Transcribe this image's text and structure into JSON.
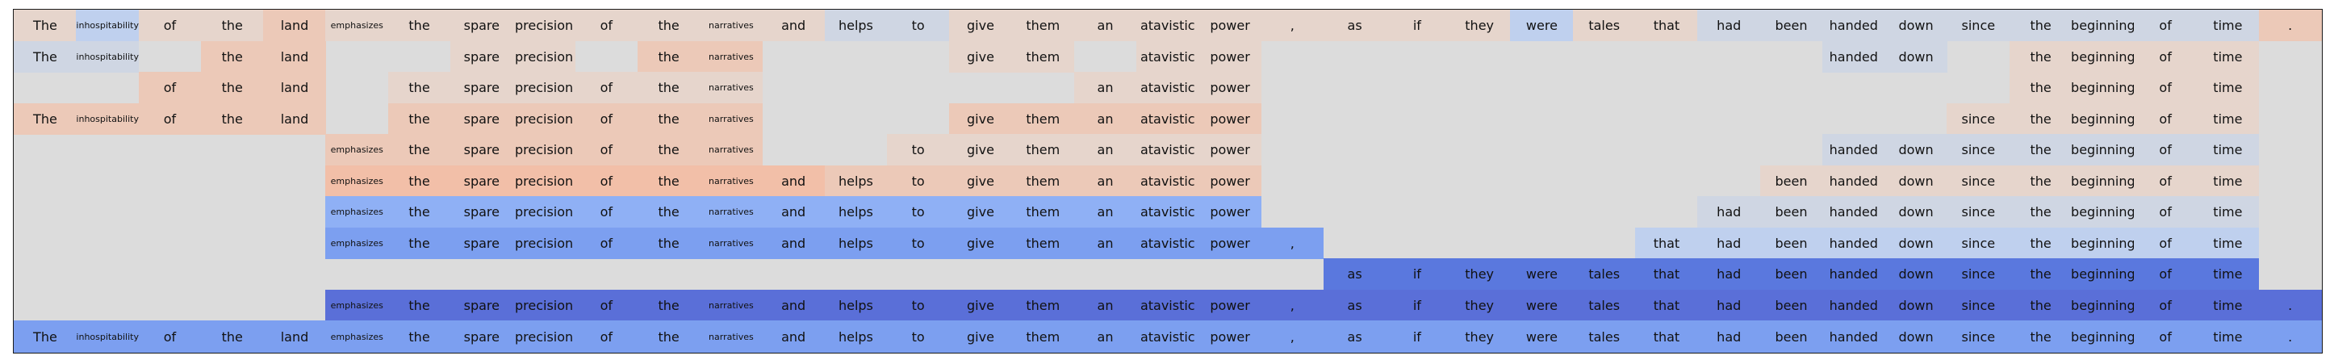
{
  "tokens": [
    "The",
    "inhospitability",
    "of",
    "the",
    "land",
    "emphasizes",
    "the",
    "spare",
    "precision",
    "of",
    "the",
    "narratives",
    "and",
    "helps",
    "to",
    "give",
    "them",
    "an",
    "atavistic",
    "power",
    ",",
    "as",
    "if",
    "they",
    "were",
    "tales",
    "that",
    "had",
    "been",
    "handed",
    "down",
    "since",
    "the",
    "beginning",
    "of",
    "time",
    "."
  ],
  "small_tokens": [
    "inhospitability",
    "emphasizes",
    "narratives"
  ],
  "palette": {
    "background": "#dcdcdc",
    "o1": "#e6d5cc",
    "o2": "#ecc9b8",
    "o3": "#f2bfa8",
    "b0": "#cfd6e3",
    "b1": "#bfd0ee",
    "b2": "#8fb0f5",
    "b3": "#7c9ff0",
    "b4": "#6a8ceb",
    "b5": "#5a78de",
    "b6": "#5a6fd8"
  },
  "rows": [
    {
      "cells": [
        "o1",
        "b1",
        "o1",
        "o1",
        "o2",
        "o1",
        "o1",
        "o1",
        "o1",
        "o1",
        "o1",
        "o1",
        "o1",
        "b0",
        "b0",
        "o1",
        "o1",
        "o1",
        "o1",
        "o1",
        "o1",
        "o1",
        "o1",
        "o1",
        "b1",
        "o1",
        "o1",
        "b0",
        "b0",
        "b0",
        "b0",
        "b0",
        "b0",
        "b0",
        "b0",
        "b0",
        "o2"
      ],
      "show": [
        1,
        1,
        1,
        1,
        1,
        1,
        1,
        1,
        1,
        1,
        1,
        1,
        1,
        1,
        1,
        1,
        1,
        1,
        1,
        1,
        1,
        1,
        1,
        1,
        1,
        1,
        1,
        1,
        1,
        1,
        1,
        1,
        1,
        1,
        1,
        1,
        1
      ]
    },
    {
      "cells": [
        "b0",
        "b0",
        null,
        "o2",
        "o2",
        null,
        null,
        "o1",
        "o1",
        null,
        "o2",
        "o2",
        null,
        null,
        null,
        "o1",
        "o1",
        null,
        "o1",
        "o1",
        null,
        null,
        null,
        null,
        null,
        null,
        null,
        null,
        null,
        "b0",
        "b0",
        null,
        "o1",
        "o1",
        "o1",
        "o1",
        null
      ],
      "show": [
        1,
        1,
        0,
        1,
        1,
        0,
        0,
        1,
        1,
        0,
        1,
        1,
        0,
        0,
        0,
        1,
        1,
        0,
        1,
        1,
        0,
        0,
        0,
        0,
        0,
        0,
        0,
        0,
        0,
        1,
        1,
        0,
        1,
        1,
        1,
        1,
        0
      ]
    },
    {
      "cells": [
        null,
        null,
        "o2",
        "o2",
        "o2",
        null,
        "o1",
        "o1",
        "o1",
        "o1",
        "o1",
        "o1",
        null,
        null,
        null,
        null,
        null,
        "o1",
        "o1",
        "o1",
        null,
        null,
        null,
        null,
        null,
        null,
        null,
        null,
        null,
        null,
        null,
        null,
        "o1",
        "o1",
        "o1",
        "o1",
        null
      ],
      "show": [
        0,
        0,
        1,
        1,
        1,
        0,
        1,
        1,
        1,
        1,
        1,
        1,
        0,
        0,
        0,
        0,
        0,
        1,
        1,
        1,
        0,
        0,
        0,
        0,
        0,
        0,
        0,
        0,
        0,
        0,
        0,
        0,
        1,
        1,
        1,
        1,
        0
      ]
    },
    {
      "cells": [
        "o2",
        "o2",
        "o2",
        "o2",
        "o2",
        null,
        "o2",
        "o2",
        "o2",
        "o2",
        "o2",
        "o2",
        null,
        null,
        null,
        "o2",
        "o2",
        "o2",
        "o2",
        "o2",
        null,
        null,
        null,
        null,
        null,
        null,
        null,
        null,
        null,
        null,
        null,
        "o1",
        "o1",
        "o1",
        "o1",
        "o1",
        null
      ],
      "show": [
        1,
        1,
        1,
        1,
        1,
        0,
        1,
        1,
        1,
        1,
        1,
        1,
        0,
        0,
        0,
        1,
        1,
        1,
        1,
        1,
        0,
        0,
        0,
        0,
        0,
        0,
        0,
        0,
        0,
        0,
        0,
        1,
        1,
        1,
        1,
        1,
        0
      ]
    },
    {
      "cells": [
        null,
        null,
        null,
        null,
        null,
        "o2",
        "o2",
        "o2",
        "o2",
        "o2",
        "o2",
        "o2",
        null,
        null,
        "o1",
        "o1",
        "o1",
        "o1",
        "o1",
        "o1",
        null,
        null,
        null,
        null,
        null,
        null,
        null,
        null,
        null,
        "b0",
        "b0",
        "b0",
        "b0",
        "b0",
        "b0",
        "b0",
        null
      ],
      "show": [
        0,
        0,
        0,
        0,
        0,
        1,
        1,
        1,
        1,
        1,
        1,
        1,
        0,
        0,
        1,
        1,
        1,
        1,
        1,
        1,
        0,
        0,
        0,
        0,
        0,
        0,
        0,
        0,
        0,
        1,
        1,
        1,
        1,
        1,
        1,
        1,
        0
      ]
    },
    {
      "cells": [
        null,
        null,
        null,
        null,
        null,
        "o3",
        "o3",
        "o3",
        "o3",
        "o3",
        "o3",
        "o3",
        "o3",
        "o2",
        "o2",
        "o2",
        "o2",
        "o2",
        "o2",
        "o2",
        null,
        null,
        null,
        null,
        null,
        null,
        null,
        null,
        "o1",
        "o1",
        "o1",
        "o1",
        "o1",
        "o1",
        "o1",
        "o1",
        null
      ],
      "show": [
        0,
        0,
        0,
        0,
        0,
        1,
        1,
        1,
        1,
        1,
        1,
        1,
        1,
        1,
        1,
        1,
        1,
        1,
        1,
        1,
        0,
        0,
        0,
        0,
        0,
        0,
        0,
        0,
        1,
        1,
        1,
        1,
        1,
        1,
        1,
        1,
        0
      ]
    },
    {
      "cells": [
        null,
        null,
        null,
        null,
        null,
        "b2",
        "b2",
        "b2",
        "b2",
        "b2",
        "b2",
        "b2",
        "b2",
        "b2",
        "b2",
        "b2",
        "b2",
        "b2",
        "b2",
        "b2",
        null,
        null,
        null,
        null,
        null,
        null,
        null,
        "b0",
        "b0",
        "b0",
        "b0",
        "b0",
        "b0",
        "b0",
        "b0",
        "b0",
        null
      ],
      "show": [
        0,
        0,
        0,
        0,
        0,
        1,
        1,
        1,
        1,
        1,
        1,
        1,
        1,
        1,
        1,
        1,
        1,
        1,
        1,
        1,
        0,
        0,
        0,
        0,
        0,
        0,
        0,
        1,
        1,
        1,
        1,
        1,
        1,
        1,
        1,
        1,
        0
      ]
    },
    {
      "cells": [
        null,
        null,
        null,
        null,
        null,
        "b3",
        "b3",
        "b3",
        "b3",
        "b3",
        "b3",
        "b3",
        "b3",
        "b3",
        "b3",
        "b3",
        "b3",
        "b3",
        "b3",
        "b3",
        "b3",
        null,
        null,
        null,
        null,
        null,
        "b1",
        "b1",
        "b1",
        "b1",
        "b1",
        "b1",
        "b1",
        "b1",
        "b1",
        "b1",
        null
      ],
      "show": [
        0,
        0,
        0,
        0,
        0,
        1,
        1,
        1,
        1,
        1,
        1,
        1,
        1,
        1,
        1,
        1,
        1,
        1,
        1,
        1,
        1,
        0,
        0,
        0,
        0,
        0,
        1,
        1,
        1,
        1,
        1,
        1,
        1,
        1,
        1,
        1,
        0
      ]
    },
    {
      "cells": [
        null,
        null,
        null,
        null,
        null,
        null,
        null,
        null,
        null,
        null,
        null,
        null,
        null,
        null,
        null,
        null,
        null,
        null,
        null,
        null,
        null,
        "b5",
        "b5",
        "b5",
        "b5",
        "b5",
        "b5",
        "b5",
        "b5",
        "b5",
        "b5",
        "b5",
        "b5",
        "b5",
        "b5",
        "b5",
        null
      ],
      "show": [
        0,
        0,
        0,
        0,
        0,
        0,
        0,
        0,
        0,
        0,
        0,
        0,
        0,
        0,
        0,
        0,
        0,
        0,
        0,
        0,
        0,
        1,
        1,
        1,
        1,
        1,
        1,
        1,
        1,
        1,
        1,
        1,
        1,
        1,
        1,
        1,
        0
      ]
    },
    {
      "cells": [
        null,
        null,
        null,
        null,
        null,
        "b6",
        "b6",
        "b6",
        "b6",
        "b6",
        "b6",
        "b6",
        "b6",
        "b6",
        "b6",
        "b6",
        "b6",
        "b6",
        "b6",
        "b6",
        "b6",
        "b6",
        "b6",
        "b6",
        "b6",
        "b6",
        "b6",
        "b6",
        "b6",
        "b6",
        "b6",
        "b6",
        "b6",
        "b6",
        "b6",
        "b6",
        "b6"
      ],
      "show": [
        0,
        0,
        0,
        0,
        0,
        1,
        1,
        1,
        1,
        1,
        1,
        1,
        1,
        1,
        1,
        1,
        1,
        1,
        1,
        1,
        1,
        1,
        1,
        1,
        1,
        1,
        1,
        1,
        1,
        1,
        1,
        1,
        1,
        1,
        1,
        1,
        1
      ]
    },
    {
      "cells": [
        "b3",
        "b3",
        "b3",
        "b3",
        "b3",
        "b3",
        "b3",
        "b3",
        "b3",
        "b3",
        "b3",
        "b3",
        "b3",
        "b3",
        "b3",
        "b3",
        "b3",
        "b3",
        "b3",
        "b3",
        "b3",
        "b3",
        "b3",
        "b3",
        "b3",
        "b3",
        "b3",
        "b3",
        "b3",
        "b3",
        "b3",
        "b3",
        "b3",
        "b3",
        "b3",
        "b3",
        "b3"
      ],
      "show": [
        1,
        1,
        1,
        1,
        1,
        1,
        1,
        1,
        1,
        1,
        1,
        1,
        1,
        1,
        1,
        1,
        1,
        1,
        1,
        1,
        1,
        1,
        1,
        1,
        1,
        1,
        1,
        1,
        1,
        1,
        1,
        1,
        1,
        1,
        1,
        1,
        1
      ]
    }
  ]
}
